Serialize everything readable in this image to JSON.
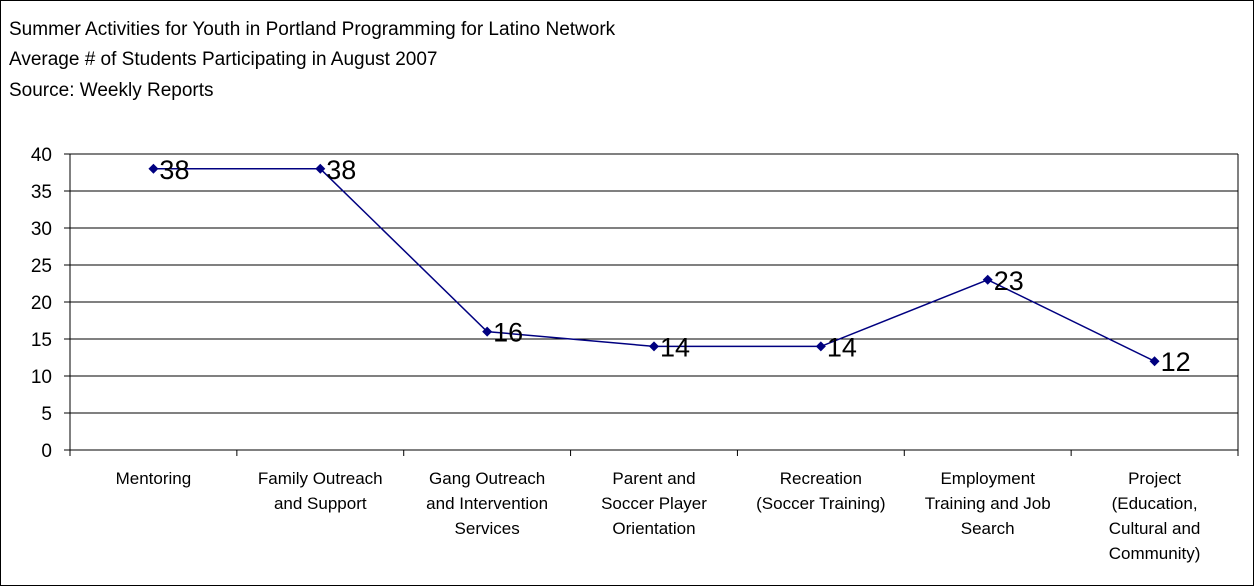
{
  "header": {
    "title": "Summer Activities for Youth in Portland Programming for Latino Network",
    "subtitle": "Average # of Students Participating in August 2007",
    "source": "Source:  Weekly Reports"
  },
  "chart_data": {
    "type": "line",
    "categories": [
      [
        "Mentoring"
      ],
      [
        "Family Outreach",
        "and Support"
      ],
      [
        "Gang Outreach",
        "and Intervention",
        "Services"
      ],
      [
        "Parent and",
        "Soccer Player",
        "Orientation"
      ],
      [
        "Recreation",
        "(Soccer Training)"
      ],
      [
        "Employment",
        "Training and Job",
        "Search"
      ],
      [
        "Project",
        "(Education,",
        "Cultural and",
        "Community)"
      ]
    ],
    "values": [
      38,
      38,
      16,
      14,
      14,
      23,
      12
    ],
    "data_labels": [
      "38",
      "38",
      "16",
      "14",
      "14",
      "23",
      "12"
    ],
    "ylim": [
      0,
      40
    ],
    "yticks": [
      0,
      5,
      10,
      15,
      20,
      25,
      30,
      35,
      40
    ],
    "grid": true,
    "legend": "none",
    "colors": {
      "line": "#000080",
      "marker": "#000080",
      "grid": "#000000"
    }
  }
}
